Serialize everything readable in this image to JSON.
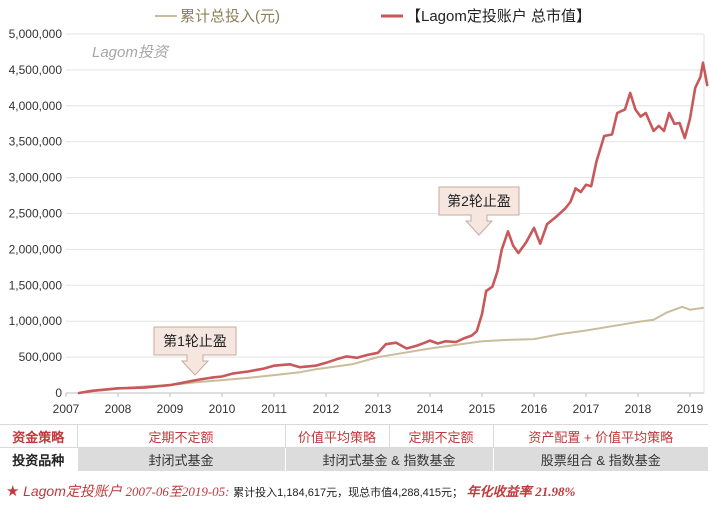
{
  "chart_data": {
    "type": "line",
    "watermark": "Lagom投资",
    "y_ticks": [
      "5,000,000",
      "4,500,000",
      "4,000,000",
      "3,500,000",
      "3,000,000",
      "2,500,000",
      "2,000,000",
      "1,500,000",
      "1,000,000",
      "500,000",
      "0"
    ],
    "y_tick_values": [
      5000000,
      4500000,
      4000000,
      3500000,
      3000000,
      2500000,
      2000000,
      1500000,
      1000000,
      500000,
      0
    ],
    "x_ticks": [
      "2007",
      "2008",
      "2009",
      "2010",
      "2011",
      "2012",
      "2013",
      "2014",
      "2015",
      "2016",
      "2017",
      "2018",
      "2019"
    ],
    "x_tick_values": [
      2007,
      2008,
      2009,
      2010,
      2011,
      2012,
      2013,
      2014,
      2015,
      2016,
      2017,
      2018,
      2019
    ],
    "xlim": [
      2007,
      2019.33
    ],
    "ylim": [
      0,
      5000000
    ],
    "grid": "horizontal",
    "legend_placement": "top",
    "series": [
      {
        "name": "累计总投入(元)",
        "color": "#c9bd9c",
        "points": [
          [
            2007.25,
            0
          ],
          [
            2007.5,
            25000
          ],
          [
            2008.0,
            60000
          ],
          [
            2008.5,
            90000
          ],
          [
            2009.0,
            110000
          ],
          [
            2009.5,
            150000
          ],
          [
            2010.0,
            180000
          ],
          [
            2010.5,
            210000
          ],
          [
            2011.0,
            250000
          ],
          [
            2011.5,
            290000
          ],
          [
            2011.8,
            330000
          ],
          [
            2012.0,
            350000
          ],
          [
            2012.5,
            400000
          ],
          [
            2013.0,
            500000
          ],
          [
            2013.5,
            560000
          ],
          [
            2014.0,
            620000
          ],
          [
            2014.5,
            670000
          ],
          [
            2015.0,
            720000
          ],
          [
            2015.5,
            740000
          ],
          [
            2016.0,
            750000
          ],
          [
            2016.5,
            820000
          ],
          [
            2017.0,
            870000
          ],
          [
            2017.5,
            930000
          ],
          [
            2018.0,
            990000
          ],
          [
            2018.3,
            1020000
          ],
          [
            2018.55,
            1120000
          ],
          [
            2018.85,
            1200000
          ],
          [
            2019.0,
            1160000
          ],
          [
            2019.25,
            1184617
          ]
        ]
      },
      {
        "name": "【Lagom定投账户 总市值】",
        "color": "#c8585a",
        "points": [
          [
            2007.25,
            0
          ],
          [
            2007.5,
            30000
          ],
          [
            2008.0,
            65000
          ],
          [
            2008.5,
            75000
          ],
          [
            2009.0,
            110000
          ],
          [
            2009.3,
            150000
          ],
          [
            2009.5,
            180000
          ],
          [
            2009.8,
            215000
          ],
          [
            2010.0,
            230000
          ],
          [
            2010.2,
            270000
          ],
          [
            2010.5,
            300000
          ],
          [
            2010.8,
            340000
          ],
          [
            2011.0,
            380000
          ],
          [
            2011.3,
            400000
          ],
          [
            2011.5,
            360000
          ],
          [
            2011.8,
            380000
          ],
          [
            2012.0,
            420000
          ],
          [
            2012.2,
            470000
          ],
          [
            2012.4,
            510000
          ],
          [
            2012.6,
            490000
          ],
          [
            2012.8,
            530000
          ],
          [
            2013.0,
            560000
          ],
          [
            2013.15,
            680000
          ],
          [
            2013.35,
            700000
          ],
          [
            2013.55,
            620000
          ],
          [
            2013.75,
            660000
          ],
          [
            2013.9,
            700000
          ],
          [
            2014.0,
            730000
          ],
          [
            2014.15,
            690000
          ],
          [
            2014.3,
            720000
          ],
          [
            2014.5,
            710000
          ],
          [
            2014.65,
            760000
          ],
          [
            2014.8,
            800000
          ],
          [
            2014.9,
            860000
          ],
          [
            2015.0,
            1100000
          ],
          [
            2015.08,
            1420000
          ],
          [
            2015.2,
            1480000
          ],
          [
            2015.3,
            1700000
          ],
          [
            2015.38,
            2000000
          ],
          [
            2015.5,
            2250000
          ],
          [
            2015.6,
            2050000
          ],
          [
            2015.7,
            1950000
          ],
          [
            2015.85,
            2100000
          ],
          [
            2016.0,
            2300000
          ],
          [
            2016.12,
            2080000
          ],
          [
            2016.25,
            2350000
          ],
          [
            2016.45,
            2470000
          ],
          [
            2016.6,
            2570000
          ],
          [
            2016.7,
            2660000
          ],
          [
            2016.8,
            2850000
          ],
          [
            2016.9,
            2800000
          ],
          [
            2017.0,
            2900000
          ],
          [
            2017.1,
            2880000
          ],
          [
            2017.2,
            3220000
          ],
          [
            2017.35,
            3580000
          ],
          [
            2017.5,
            3600000
          ],
          [
            2017.6,
            3900000
          ],
          [
            2017.75,
            3950000
          ],
          [
            2017.85,
            4180000
          ],
          [
            2017.95,
            3950000
          ],
          [
            2018.05,
            3850000
          ],
          [
            2018.15,
            3900000
          ],
          [
            2018.3,
            3650000
          ],
          [
            2018.4,
            3720000
          ],
          [
            2018.5,
            3650000
          ],
          [
            2018.6,
            3900000
          ],
          [
            2018.7,
            3750000
          ],
          [
            2018.8,
            3760000
          ],
          [
            2018.9,
            3550000
          ],
          [
            2019.0,
            3820000
          ],
          [
            2019.1,
            4250000
          ],
          [
            2019.2,
            4400000
          ],
          [
            2019.25,
            4600000
          ],
          [
            2019.33,
            4288415
          ]
        ]
      }
    ],
    "annotations": [
      {
        "text": "第1轮止盈",
        "x": 2009.65,
        "y": 180000
      },
      {
        "text": "第2轮止盈",
        "x": 2014.85,
        "y": 2200000
      }
    ]
  },
  "table": {
    "strategy_header": "资金策略",
    "strategies": [
      "定期不定额",
      "价值平均策略",
      "定期不定额",
      "资产配置 + 价值平均策略"
    ],
    "product_header": "投资品种",
    "products": [
      "封闭式基金",
      "封闭式基金 & 指数基金",
      "股票组合 & 指数基金"
    ]
  },
  "footer": {
    "star": "★",
    "account": "Lagom定投账户",
    "period": "2007-06至2019-05:",
    "summary": "累计投入1,184,617元，现总市值4,288,415元；",
    "return_label": "年化收益率",
    "return_value": "21.98%"
  }
}
